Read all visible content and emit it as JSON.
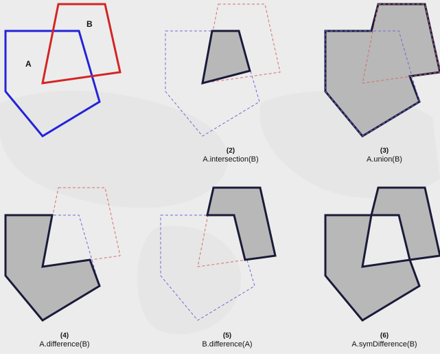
{
  "colors": {
    "a_stroke": "#2323d8",
    "b_stroke": "#d42424",
    "result_stroke": "#1a1a3a",
    "result_stroke_b": "#3a1010",
    "result_fill": "#b8b8b8",
    "ghost_a": "#6a6ad8",
    "ghost_b": "#d86a6a"
  },
  "panels": [
    {
      "id": "source",
      "number": "",
      "operation": "",
      "label_a": "A",
      "label_b": "B"
    },
    {
      "id": "intersection",
      "number": "(2)",
      "operation": "A.intersection(B)"
    },
    {
      "id": "union",
      "number": "(3)",
      "operation": "A.union(B)"
    },
    {
      "id": "a-difference",
      "number": "(4)",
      "operation": "A.difference(B)"
    },
    {
      "id": "b-difference",
      "number": "(5)",
      "operation": "B.difference(A)"
    },
    {
      "id": "sym-difference",
      "number": "(6)",
      "operation": "A.symDifference(B)"
    }
  ]
}
